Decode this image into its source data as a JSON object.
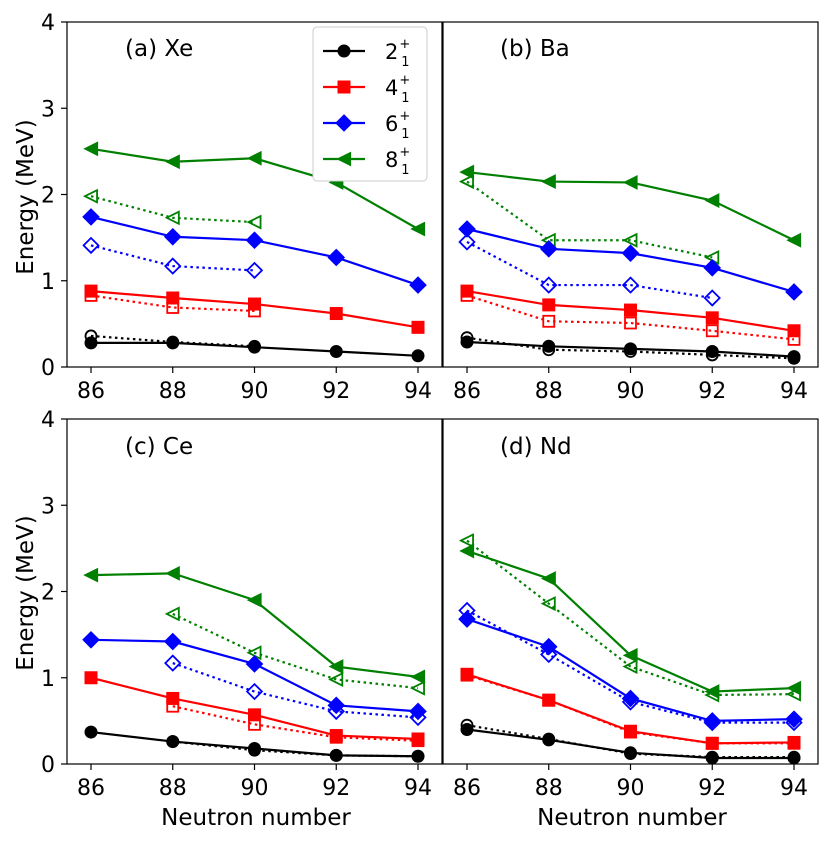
{
  "chart_data": {
    "type": "line",
    "xlabel": "Neutron number",
    "ylabel": "Energy (MeV)",
    "x": [
      86,
      88,
      90,
      92,
      94
    ],
    "xticks": [
      "86",
      "88",
      "90",
      "92",
      "94"
    ],
    "ylim": [
      0,
      4
    ],
    "yticks": [
      "0",
      "1",
      "2",
      "3",
      "4"
    ],
    "legend": {
      "placement": "top-right of panel (a)",
      "entries": [
        {
          "key": "2",
          "label": "2",
          "sub": "1",
          "sup": "+",
          "color": "#000000",
          "marker": "circle"
        },
        {
          "key": "4",
          "label": "4",
          "sub": "1",
          "sup": "+",
          "color": "#ff0000",
          "marker": "square"
        },
        {
          "key": "6",
          "label": "6",
          "sub": "1",
          "sup": "+",
          "color": "#0000ff",
          "marker": "diamond"
        },
        {
          "key": "8",
          "label": "8",
          "sub": "1",
          "sup": "+",
          "color": "#008000",
          "marker": "triangle-left"
        }
      ]
    },
    "panels": [
      {
        "id": "a",
        "label": "(a) Xe",
        "solid": {
          "2": [
            0.28,
            0.28,
            0.23,
            0.18,
            0.13
          ],
          "4": [
            0.88,
            0.8,
            0.73,
            0.62,
            0.46
          ],
          "6": [
            1.74,
            1.51,
            1.47,
            1.27,
            0.95
          ],
          "8": [
            2.53,
            2.38,
            2.42,
            2.14,
            1.6
          ]
        },
        "dotted": {
          "2": [
            0.36,
            0.29,
            0.24,
            null,
            null
          ],
          "4": [
            0.83,
            0.69,
            0.65,
            null,
            null
          ],
          "6": [
            1.41,
            1.17,
            1.12,
            null,
            null
          ],
          "8": [
            1.98,
            1.73,
            1.68,
            null,
            null
          ]
        }
      },
      {
        "id": "b",
        "label": "(b) Ba",
        "solid": {
          "2": [
            0.29,
            0.24,
            0.21,
            0.18,
            0.12
          ],
          "4": [
            0.88,
            0.72,
            0.66,
            0.57,
            0.42
          ],
          "6": [
            1.6,
            1.37,
            1.32,
            1.15,
            0.87
          ],
          "8": [
            2.26,
            2.15,
            2.14,
            1.93,
            1.47
          ]
        },
        "dotted": {
          "2": [
            0.34,
            0.2,
            0.18,
            0.14,
            0.1
          ],
          "4": [
            0.83,
            0.53,
            0.51,
            0.42,
            0.32
          ],
          "6": [
            1.45,
            0.95,
            0.95,
            0.8,
            null
          ],
          "8": [
            2.15,
            1.47,
            1.47,
            1.27,
            null
          ]
        }
      },
      {
        "id": "c",
        "label": "(c) Ce",
        "solid": {
          "2": [
            0.37,
            0.26,
            0.18,
            0.1,
            0.09
          ],
          "4": [
            1.0,
            0.76,
            0.57,
            0.33,
            0.29
          ],
          "6": [
            1.44,
            1.42,
            1.16,
            0.68,
            0.61
          ],
          "8": [
            2.19,
            2.21,
            1.9,
            1.13,
            1.01
          ]
        },
        "dotted": {
          "2": [
            null,
            0.26,
            0.16,
            0.1,
            0.09
          ],
          "4": [
            null,
            0.67,
            0.46,
            0.31,
            0.27
          ],
          "6": [
            null,
            1.17,
            0.84,
            0.61,
            0.54
          ],
          "8": [
            null,
            1.74,
            1.29,
            0.98,
            0.88
          ]
        }
      },
      {
        "id": "d",
        "label": "(d) Nd",
        "solid": {
          "2": [
            0.4,
            0.28,
            0.13,
            0.07,
            0.07
          ],
          "4": [
            1.04,
            0.74,
            0.38,
            0.24,
            0.25
          ],
          "6": [
            1.68,
            1.36,
            0.76,
            0.5,
            0.52
          ],
          "8": [
            2.47,
            2.15,
            1.26,
            0.84,
            0.88
          ]
        },
        "dotted": {
          "2": [
            0.45,
            0.29,
            0.12,
            0.08,
            0.08
          ],
          "4": [
            1.03,
            0.74,
            0.37,
            0.24,
            0.24
          ],
          "6": [
            1.78,
            1.27,
            0.72,
            0.48,
            0.48
          ],
          "8": [
            2.59,
            1.86,
            1.13,
            0.8,
            0.81
          ]
        }
      }
    ]
  }
}
